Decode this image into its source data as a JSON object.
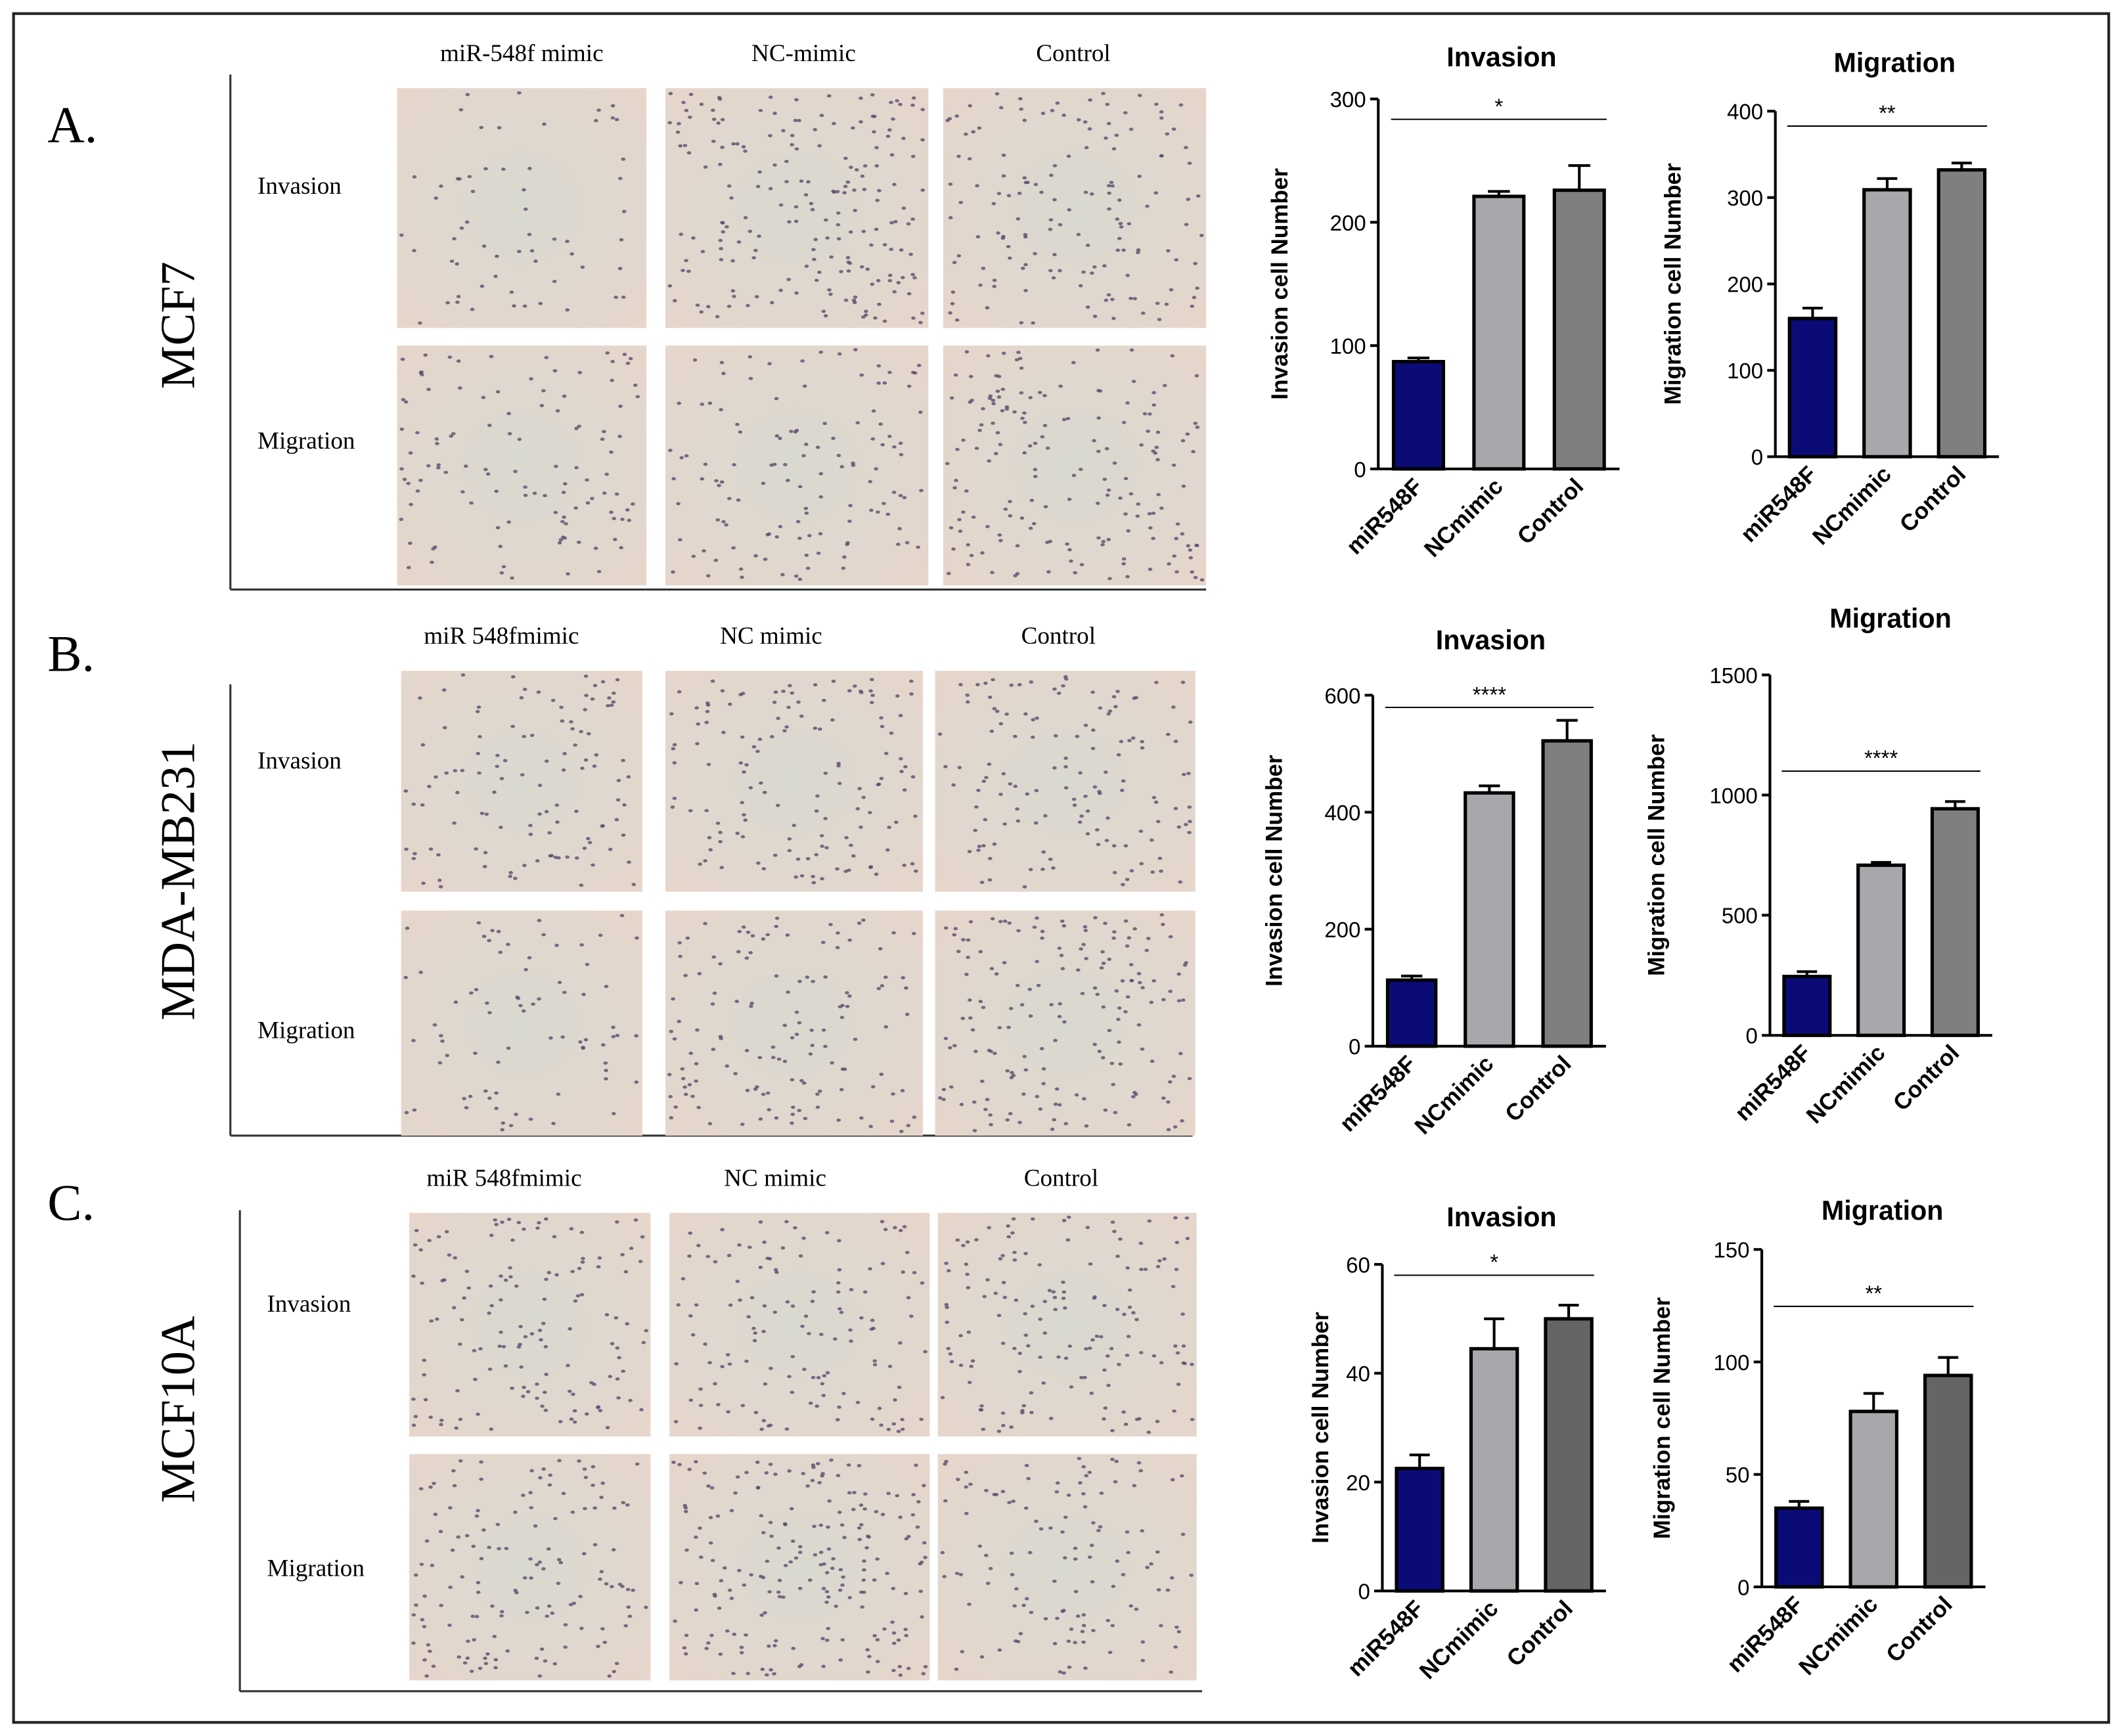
{
  "panels": [
    {
      "label": "A.",
      "cell_line": "MCF7",
      "columns": [
        "miR-548f mimic",
        "NC-mimic",
        "Control"
      ],
      "rows": [
        "Invasion",
        "Migration"
      ]
    },
    {
      "label": "B.",
      "cell_line": "MDA-MB231",
      "columns": [
        "miR 548fmimic",
        "NC mimic",
        "Control"
      ],
      "rows": [
        "Invasion",
        "Migration"
      ]
    },
    {
      "label": "C.",
      "cell_line": "MCF10A",
      "columns": [
        "miR 548fmimic",
        "NC mimic",
        "Control"
      ],
      "rows": [
        "Invasion",
        "Migration"
      ]
    }
  ],
  "chart_data": [
    {
      "type": "bar",
      "title": "Invasion",
      "ylabel": "Invasion cell Number",
      "categories": [
        "miR548F",
        "NCmimic",
        "Control"
      ],
      "values": [
        87,
        221,
        226
      ],
      "errors": [
        3,
        4,
        20
      ],
      "colors": [
        "#0b0b78",
        "#a7a7ac",
        "#7f7f7f"
      ],
      "ylim": [
        0,
        300
      ],
      "yticks": [
        0,
        100,
        200,
        300
      ],
      "annotation": "*"
    },
    {
      "type": "bar",
      "title": "Migration",
      "ylabel": "Migration cell Number",
      "categories": [
        "miR548F",
        "NCmimic",
        "Control"
      ],
      "values": [
        160,
        309,
        332
      ],
      "errors": [
        12,
        13,
        8
      ],
      "colors": [
        "#0b0b78",
        "#a7a7ac",
        "#7f7f7f"
      ],
      "ylim": [
        0,
        400
      ],
      "yticks": [
        0,
        100,
        200,
        300,
        400
      ],
      "annotation": "**"
    },
    {
      "type": "bar",
      "title": "Invasion",
      "ylabel": "Invasion cell Number",
      "categories": [
        "miR548F",
        "NCmimic",
        "Control"
      ],
      "values": [
        113,
        433,
        522
      ],
      "errors": [
        7,
        12,
        35
      ],
      "colors": [
        "#0b0b78",
        "#a7a7ac",
        "#7f7f7f"
      ],
      "ylim": [
        0,
        600
      ],
      "yticks": [
        0,
        200,
        400,
        600
      ],
      "annotation": "****"
    },
    {
      "type": "bar",
      "title": "Migration",
      "ylabel": "Migration cell Number",
      "categories": [
        "miR548F",
        "NCmimic",
        "Control"
      ],
      "values": [
        245,
        708,
        943
      ],
      "errors": [
        20,
        12,
        30
      ],
      "colors": [
        "#0b0b78",
        "#a7a7ac",
        "#7f7f7f"
      ],
      "ylim": [
        0,
        1500
      ],
      "yticks": [
        0,
        500,
        1000,
        1500
      ],
      "annotation": "****"
    },
    {
      "type": "bar",
      "title": "Invasion",
      "ylabel": "Invasion cell Number",
      "categories": [
        "miR548F",
        "NCmimic",
        "Control"
      ],
      "values": [
        22.5,
        44.5,
        50
      ],
      "errors": [
        2.5,
        5.5,
        2.5
      ],
      "colors": [
        "#0b0b78",
        "#a7a7ac",
        "#656565"
      ],
      "ylim": [
        0,
        60
      ],
      "yticks": [
        0,
        20,
        40,
        60
      ],
      "annotation": "*"
    },
    {
      "type": "bar",
      "title": "Migration",
      "ylabel": "Migration cell Number",
      "categories": [
        "miR548F",
        "NCmimic",
        "Control"
      ],
      "values": [
        35,
        78,
        94
      ],
      "errors": [
        3,
        8,
        8
      ],
      "colors": [
        "#0b0b78",
        "#a7a7ac",
        "#656565"
      ],
      "ylim": [
        0,
        150
      ],
      "yticks": [
        0,
        50,
        100,
        150
      ],
      "annotation": "**"
    }
  ]
}
